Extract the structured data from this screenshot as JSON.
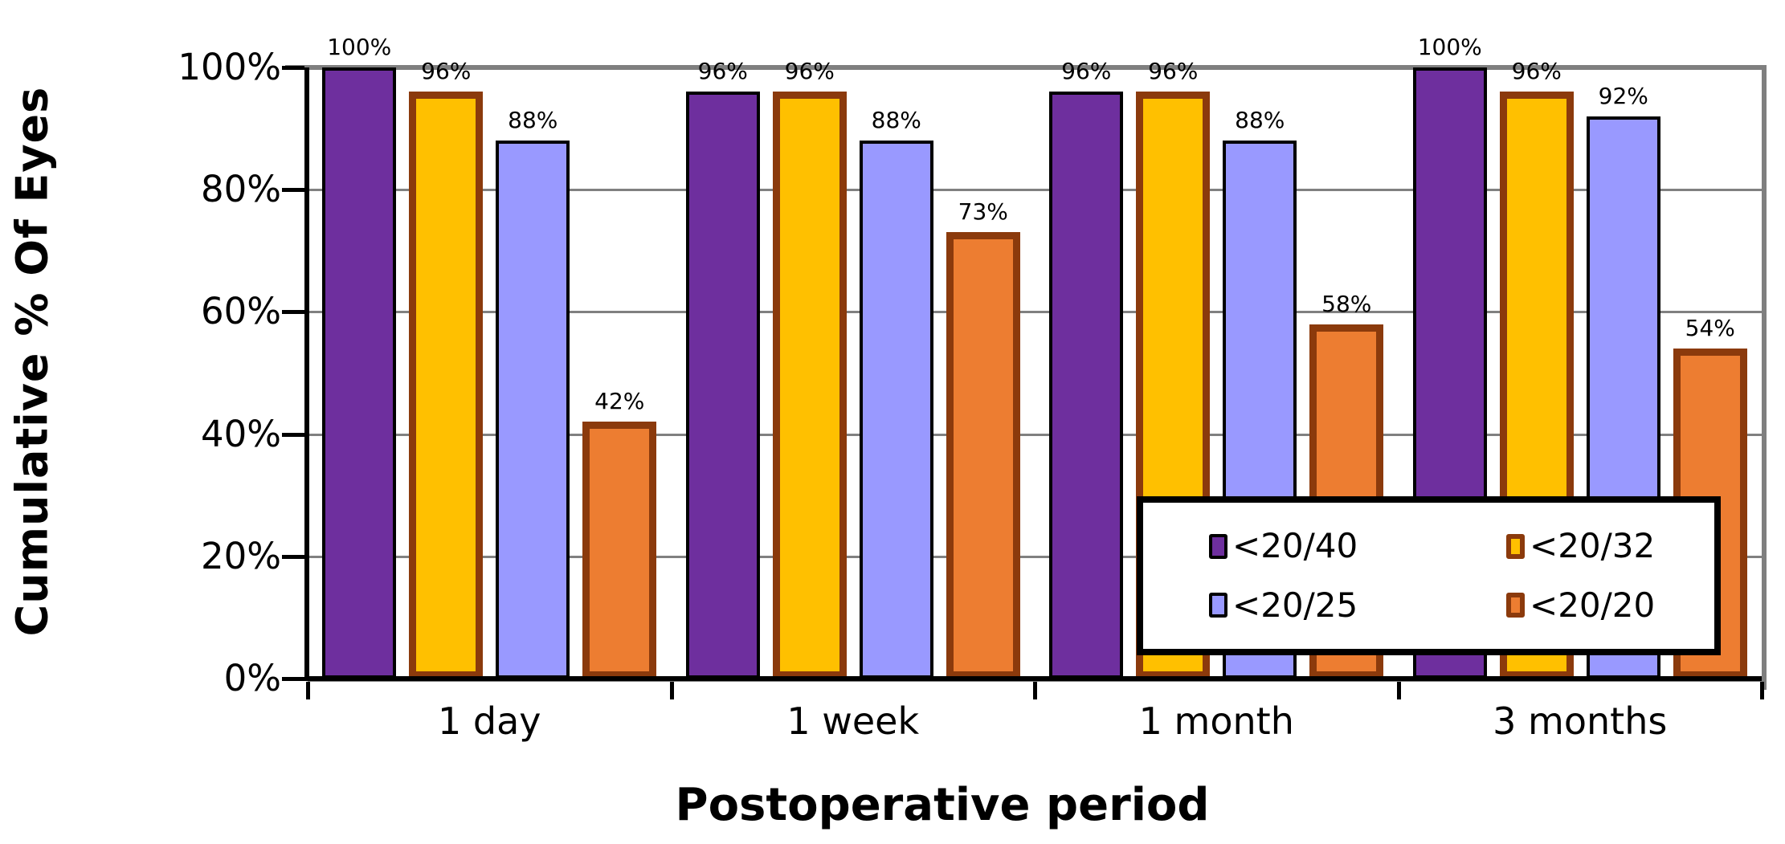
{
  "chart_data": {
    "type": "bar",
    "title": "",
    "xlabel": "Postoperative period",
    "ylabel": "Cumulative % Of Eyes",
    "categories": [
      "1 day",
      "1 week",
      "1 month",
      "3 months"
    ],
    "series": [
      {
        "name": "<20/40",
        "fill": "#6E2F9E",
        "border": "#000000",
        "values": [
          100,
          96,
          96,
          100
        ]
      },
      {
        "name": "<20/32",
        "fill": "#FFC000",
        "border": "#8B3A0C",
        "values": [
          96,
          96,
          96,
          96
        ]
      },
      {
        "name": "<20/25",
        "fill": "#9999FF",
        "border": "#000000",
        "values": [
          88,
          88,
          88,
          92
        ]
      },
      {
        "name": "<20/20",
        "fill": "#ED7D31",
        "border": "#8B3A0C",
        "values": [
          42,
          73,
          58,
          54
        ]
      }
    ],
    "data_label_suffix": "%",
    "yticks": [
      "0%",
      "20%",
      "40%",
      "60%",
      "80%",
      "100%"
    ],
    "ytick_values": [
      0,
      20,
      40,
      60,
      80,
      100
    ],
    "ylim": [
      0,
      100
    ],
    "grid": true,
    "legend_position": "inside-bottom-right",
    "legend_entries": [
      "<20/40",
      "<20/32",
      "<20/25",
      "<20/20"
    ]
  },
  "style": {
    "background": "#FFFFFF",
    "gridline_color": "#808080",
    "frame_color": "#7F7F7F",
    "axis_color": "#000000",
    "legend_border_color": "#000000",
    "text_color": "#000000"
  }
}
